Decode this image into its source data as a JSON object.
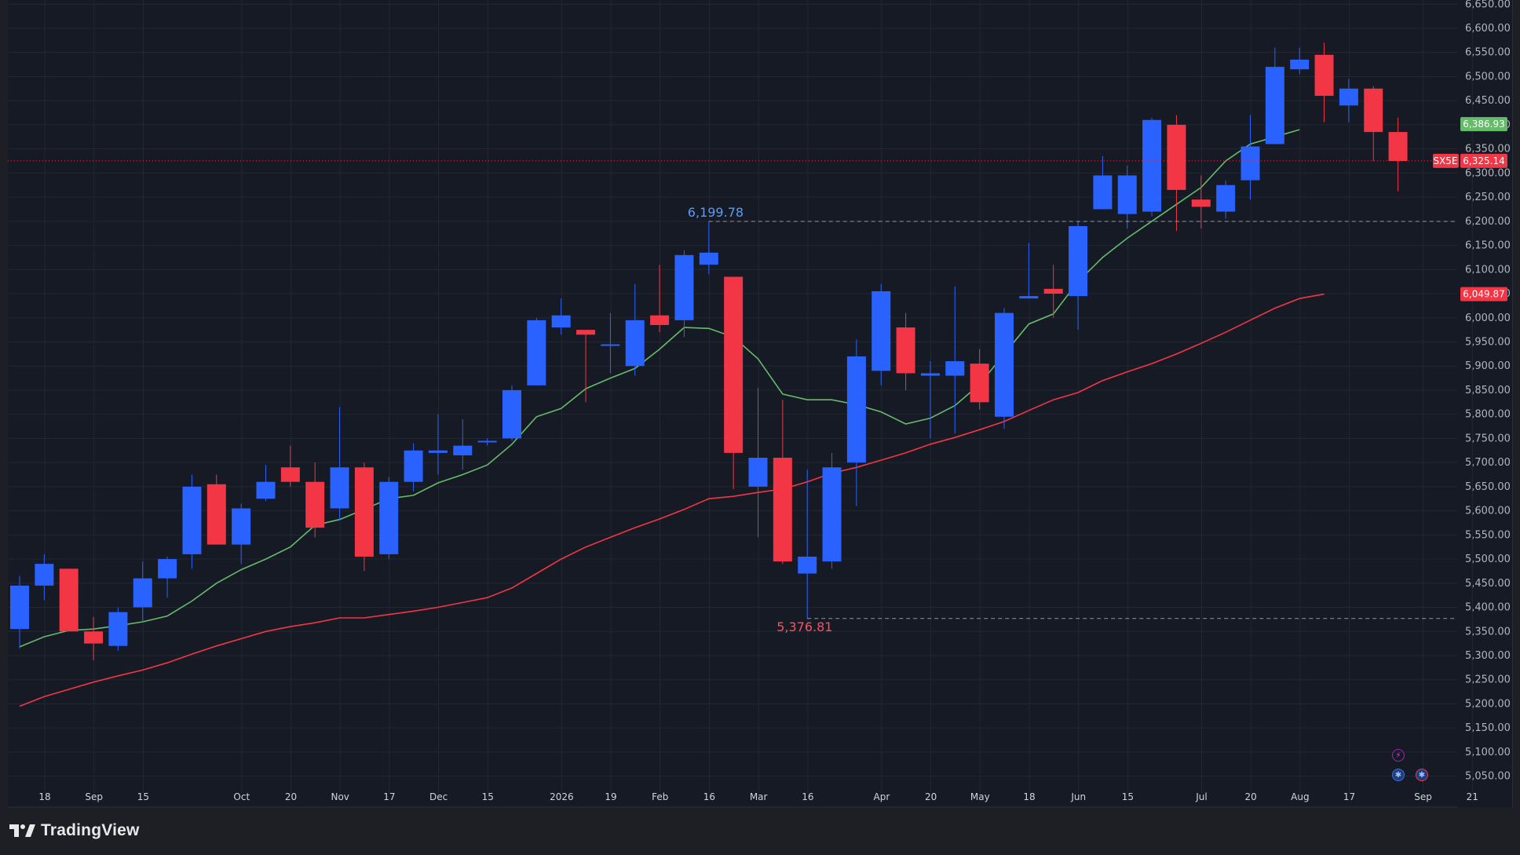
{
  "brand": {
    "name": "TradingView",
    "icon": "tradingview-logo-icon"
  },
  "colors": {
    "background": "#161a25",
    "grid": "#232733",
    "up": "#2962ff",
    "down": "#f23645",
    "ma_fast": "#66bb6a",
    "ma_slow": "#f23645",
    "last_price": "#f23645",
    "high_annotation": "#5b9cf6",
    "low_annotation": "#f7525f"
  },
  "chart_data": {
    "type": "candlestick",
    "symbol": "SX5E",
    "timeframe": "weekly",
    "y_axis": {
      "ticks": [
        "6,650.00",
        "6,600.00",
        "6,550.00",
        "6,500.00",
        "6,450.00",
        "6,400.00",
        "6,350.00",
        "6,300.00",
        "6,250.00",
        "6,200.00",
        "6,150.00",
        "6,100.00",
        "6,050.00",
        "6,000.00",
        "5,950.00",
        "5,900.00",
        "5,850.00",
        "5,800.00",
        "5,750.00",
        "5,700.00",
        "5,650.00",
        "5,600.00",
        "5,550.00",
        "5,500.00",
        "5,450.00",
        "5,400.00",
        "5,350.00",
        "5,300.00",
        "5,250.00",
        "5,200.00",
        "5,150.00",
        "5,100.00",
        "5,050.00"
      ],
      "range": [
        5025,
        6655
      ]
    },
    "x_axis": {
      "labels": [
        {
          "i": 0,
          "text": "18"
        },
        {
          "i": 2,
          "text": "Sep"
        },
        {
          "i": 4,
          "text": "15"
        },
        {
          "i": 8,
          "text": "Oct"
        },
        {
          "i": 10,
          "text": "20"
        },
        {
          "i": 12,
          "text": "Nov"
        },
        {
          "i": 14,
          "text": "17"
        },
        {
          "i": 16,
          "text": "Dec"
        },
        {
          "i": 18,
          "text": "15"
        },
        {
          "i": 21,
          "text": "2026"
        },
        {
          "i": 23,
          "text": "19"
        },
        {
          "i": 25,
          "text": "Feb"
        },
        {
          "i": 27,
          "text": "16"
        },
        {
          "i": 29,
          "text": "Mar"
        },
        {
          "i": 31,
          "text": "16"
        },
        {
          "i": 34,
          "text": "Apr"
        },
        {
          "i": 36,
          "text": "20"
        },
        {
          "i": 38,
          "text": "May"
        },
        {
          "i": 40,
          "text": "18"
        },
        {
          "i": 42,
          "text": "Jun"
        },
        {
          "i": 44,
          "text": "15"
        },
        {
          "i": 47,
          "text": "Jul"
        },
        {
          "i": 49,
          "text": "20"
        },
        {
          "i": 51,
          "text": "Aug"
        },
        {
          "i": 53,
          "text": "17"
        },
        {
          "i": 56,
          "text": "Sep"
        },
        {
          "i": 58,
          "text": "21"
        }
      ]
    },
    "candles": [
      {
        "o": 5355,
        "h": 5465,
        "l": 5315,
        "c": 5445
      },
      {
        "o": 5445,
        "h": 5510,
        "l": 5415,
        "c": 5490
      },
      {
        "o": 5480,
        "h": 5480,
        "l": 5350,
        "c": 5350
      },
      {
        "o": 5350,
        "h": 5380,
        "l": 5290,
        "c": 5325
      },
      {
        "o": 5320,
        "h": 5400,
        "l": 5310,
        "c": 5390
      },
      {
        "o": 5400,
        "h": 5495,
        "l": 5370,
        "c": 5460
      },
      {
        "o": 5460,
        "h": 5505,
        "l": 5420,
        "c": 5500
      },
      {
        "o": 5510,
        "h": 5675,
        "l": 5480,
        "c": 5650
      },
      {
        "o": 5655,
        "h": 5675,
        "l": 5530,
        "c": 5530
      },
      {
        "o": 5530,
        "h": 5615,
        "l": 5490,
        "c": 5605
      },
      {
        "o": 5625,
        "h": 5695,
        "l": 5620,
        "c": 5660
      },
      {
        "o": 5690,
        "h": 5735,
        "l": 5650,
        "c": 5660
      },
      {
        "o": 5660,
        "h": 5700,
        "l": 5545,
        "c": 5565
      },
      {
        "o": 5605,
        "h": 5815,
        "l": 5580,
        "c": 5690
      },
      {
        "o": 5690,
        "h": 5700,
        "l": 5475,
        "c": 5505
      },
      {
        "o": 5510,
        "h": 5670,
        "l": 5500,
        "c": 5660
      },
      {
        "o": 5660,
        "h": 5740,
        "l": 5640,
        "c": 5725
      },
      {
        "o": 5720,
        "h": 5800,
        "l": 5675,
        "c": 5725
      },
      {
        "o": 5715,
        "h": 5790,
        "l": 5685,
        "c": 5735
      },
      {
        "o": 5745,
        "h": 5750,
        "l": 5735,
        "c": 5745
      },
      {
        "o": 5750,
        "h": 5860,
        "l": 5745,
        "c": 5850
      },
      {
        "o": 5860,
        "h": 6000,
        "l": 5860,
        "c": 5995
      },
      {
        "o": 5980,
        "h": 6040,
        "l": 5965,
        "c": 6005
      },
      {
        "o": 5975,
        "h": 5965,
        "l": 5825,
        "c": 5965
      },
      {
        "o": 5945,
        "h": 6010,
        "l": 5885,
        "c": 5945
      },
      {
        "o": 5900,
        "h": 6070,
        "l": 5880,
        "c": 5995
      },
      {
        "o": 6005,
        "h": 6110,
        "l": 5970,
        "c": 5985
      },
      {
        "o": 5995,
        "h": 6140,
        "l": 5960,
        "c": 6130
      },
      {
        "o": 6110,
        "h": 6200,
        "l": 6090,
        "c": 6135
      },
      {
        "o": 6085,
        "h": 6085,
        "l": 5645,
        "c": 5720
      },
      {
        "o": 5650,
        "h": 5855,
        "l": 5545,
        "c": 5710
      },
      {
        "o": 5710,
        "h": 5830,
        "l": 5490,
        "c": 5495
      },
      {
        "o": 5470,
        "h": 5685,
        "l": 5377,
        "c": 5505
      },
      {
        "o": 5495,
        "h": 5720,
        "l": 5480,
        "c": 5690
      },
      {
        "o": 5700,
        "h": 5955,
        "l": 5610,
        "c": 5920
      },
      {
        "o": 5890,
        "h": 6070,
        "l": 5860,
        "c": 6055
      },
      {
        "o": 5980,
        "h": 6010,
        "l": 5850,
        "c": 5885
      },
      {
        "o": 5880,
        "h": 5910,
        "l": 5750,
        "c": 5885
      },
      {
        "o": 5880,
        "h": 6065,
        "l": 5760,
        "c": 5910
      },
      {
        "o": 5905,
        "h": 5935,
        "l": 5810,
        "c": 5825
      },
      {
        "o": 5795,
        "h": 6020,
        "l": 5770,
        "c": 6010
      },
      {
        "o": 6040,
        "h": 6155,
        "l": 6040,
        "c": 6045
      },
      {
        "o": 6060,
        "h": 6110,
        "l": 6000,
        "c": 6050
      },
      {
        "o": 6045,
        "h": 6200,
        "l": 5975,
        "c": 6190
      },
      {
        "o": 6225,
        "h": 6335,
        "l": 6225,
        "c": 6295
      },
      {
        "o": 6215,
        "h": 6315,
        "l": 6185,
        "c": 6295
      },
      {
        "o": 6220,
        "h": 6415,
        "l": 6210,
        "c": 6410
      },
      {
        "o": 6400,
        "h": 6420,
        "l": 6180,
        "c": 6265
      },
      {
        "o": 6245,
        "h": 6295,
        "l": 6185,
        "c": 6230
      },
      {
        "o": 6220,
        "h": 6285,
        "l": 6205,
        "c": 6275
      },
      {
        "o": 6285,
        "h": 6420,
        "l": 6245,
        "c": 6355
      },
      {
        "o": 6360,
        "h": 6560,
        "l": 6360,
        "c": 6520
      },
      {
        "o": 6515,
        "h": 6560,
        "l": 6505,
        "c": 6535
      },
      {
        "o": 6545,
        "h": 6570,
        "l": 6405,
        "c": 6460
      },
      {
        "o": 6440,
        "h": 6495,
        "l": 6405,
        "c": 6475
      },
      {
        "o": 6475,
        "h": 6480,
        "l": 6325,
        "c": 6385
      },
      {
        "o": 6385,
        "h": 6415,
        "l": 6262,
        "c": 6325
      }
    ],
    "moving_averages": [
      {
        "color": "#66bb6a",
        "last": "6,386.93",
        "values": [
          5318,
          5339,
          5352,
          5355,
          5362,
          5370,
          5382,
          5413,
          5450,
          5478,
          5500,
          5525,
          5570,
          5582,
          5603,
          5625,
          5632,
          5658,
          5675,
          5695,
          5738,
          5795,
          5812,
          5853,
          5875,
          5895,
          5935,
          5980,
          5978,
          5960,
          5915,
          5842,
          5830,
          5830,
          5820,
          5805,
          5780,
          5792,
          5818,
          5862,
          5925,
          5987,
          6008,
          6075,
          6125,
          6165,
          6200,
          6235,
          6270,
          6325,
          6360,
          6375,
          6390
        ]
      },
      {
        "color": "#f23645",
        "last": "6,049.87",
        "values": [
          5195,
          5215,
          5230,
          5245,
          5258,
          5270,
          5285,
          5303,
          5320,
          5335,
          5350,
          5360,
          5368,
          5378,
          5378,
          5385,
          5392,
          5400,
          5410,
          5420,
          5440,
          5470,
          5500,
          5525,
          5545,
          5565,
          5583,
          5603,
          5625,
          5630,
          5638,
          5645,
          5660,
          5678,
          5690,
          5705,
          5720,
          5738,
          5752,
          5768,
          5785,
          5808,
          5830,
          5845,
          5870,
          5888,
          5905,
          5925,
          5947,
          5970,
          5995,
          6020,
          6040,
          6049
        ]
      }
    ],
    "high_annotation": {
      "text": "6,199.78",
      "value": 6199.78,
      "index": 28
    },
    "low_annotation": {
      "text": "5,376.81",
      "value": 5376.81,
      "index": 32
    },
    "last_price": {
      "symbol": "SX5E",
      "value": 6325.14,
      "text": "6,325.14"
    }
  }
}
